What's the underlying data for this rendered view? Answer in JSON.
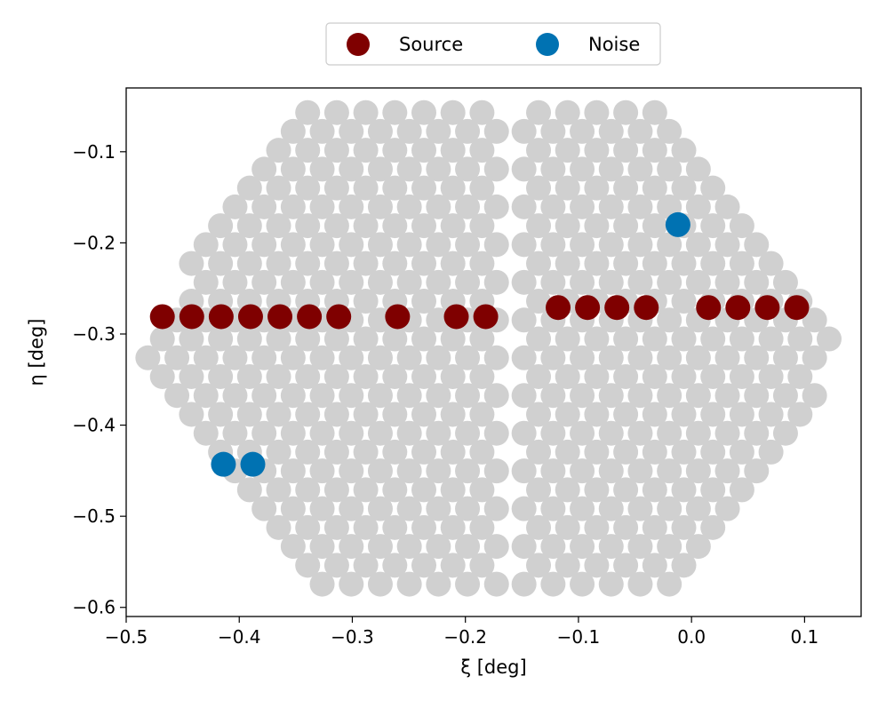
{
  "chart_data": {
    "type": "scatter",
    "xlabel": "ξ [deg]",
    "ylabel": "η [deg]",
    "xlim": [
      -0.5,
      0.15
    ],
    "ylim": [
      -0.61,
      -0.03
    ],
    "xticks": [
      -0.5,
      -0.4,
      -0.3,
      -0.2,
      -0.1,
      0.0,
      0.1
    ],
    "yticks": [
      -0.6,
      -0.5,
      -0.4,
      -0.3,
      -0.2,
      -0.1
    ],
    "xtick_labels": [
      "−0.5",
      "−0.4",
      "−0.3",
      "−0.2",
      "−0.1",
      "0.0",
      "0.1"
    ],
    "ytick_labels": [
      "−0.6",
      "−0.5",
      "−0.4",
      "−0.3",
      "−0.2",
      "−0.1"
    ],
    "grid": false,
    "legend": {
      "placement": "top-center-outside",
      "entries": [
        "Source",
        "Noise"
      ]
    },
    "background_pixels": {
      "color": "#d0d0d0",
      "groups": [
        {
          "x0": -0.468,
          "y0": -0.057,
          "x_step": 0.0257,
          "y_step": -0.0207,
          "rows": 26,
          "max_x": -0.16
        },
        {
          "x0": -0.0325,
          "y0": -0.057,
          "x_step": 0.0257,
          "y_step": -0.0207,
          "rows": 26,
          "max_x": 0.125
        }
      ]
    },
    "series": [
      {
        "name": "Source",
        "color": "#7f0000",
        "x": [
          -0.468,
          -0.442,
          -0.416,
          -0.39,
          -0.364,
          -0.338,
          -0.312,
          -0.26,
          -0.208,
          -0.182,
          -0.118,
          -0.092,
          -0.066,
          -0.04,
          0.015,
          0.041,
          0.067,
          0.093
        ],
        "y": [
          -0.281,
          -0.281,
          -0.281,
          -0.281,
          -0.281,
          -0.281,
          -0.281,
          -0.281,
          -0.281,
          -0.281,
          -0.271,
          -0.271,
          -0.271,
          -0.271,
          -0.271,
          -0.271,
          -0.271,
          -0.271
        ]
      },
      {
        "name": "Noise",
        "color": "#0072b2",
        "x": [
          -0.414,
          -0.388,
          -0.012
        ],
        "y": [
          -0.443,
          -0.443,
          -0.18
        ]
      }
    ]
  }
}
